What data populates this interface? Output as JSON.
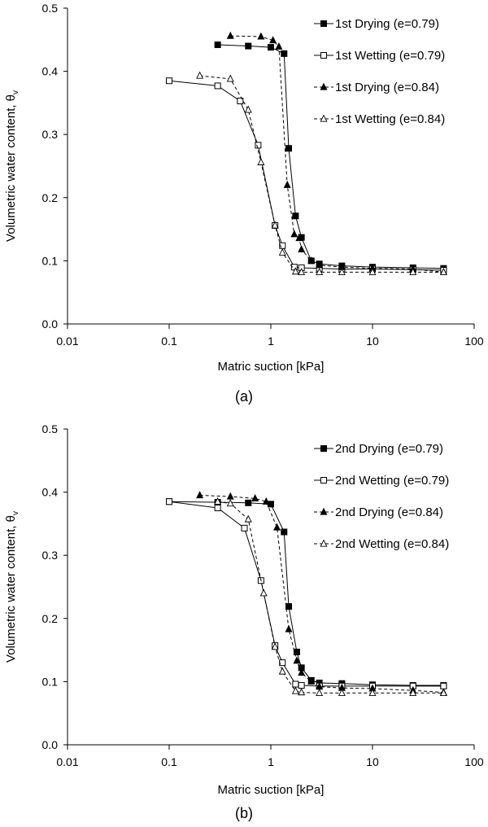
{
  "chart_data": [
    {
      "type": "line",
      "caption": "(a)",
      "xlabel": "Matric suction [kPa]",
      "ylabel_main": "Volumetric water content, θ",
      "ylabel_sub": "v",
      "xscale": "log",
      "xlim": [
        0.01,
        100
      ],
      "ylim": [
        0,
        0.5
      ],
      "xticks": [
        0.01,
        0.1,
        1,
        10,
        100
      ],
      "xtick_labels": [
        "0.01",
        "0.1",
        "1",
        "10",
        "100"
      ],
      "yticks": [
        0,
        0.1,
        0.2,
        0.3,
        0.4,
        0.5
      ],
      "ytick_labels": [
        "0.0",
        "0.1",
        "0.2",
        "0.3",
        "0.4",
        "0.5"
      ],
      "grid": false,
      "legend_position": "top-right",
      "series": [
        {
          "name": "1st Drying (e=0.79)",
          "marker": "square-filled",
          "line": "solid",
          "x": [
            0.3,
            0.6,
            1.0,
            1.35,
            1.5,
            1.75,
            2.0,
            2.5,
            3.0,
            5.0,
            10.0,
            25.0,
            50.0
          ],
          "y": [
            0.442,
            0.44,
            0.438,
            0.428,
            0.278,
            0.171,
            0.137,
            0.1,
            0.095,
            0.092,
            0.09,
            0.089,
            0.088
          ]
        },
        {
          "name": "1st Wetting (e=0.79)",
          "marker": "square-open",
          "line": "solid",
          "x": [
            0.1,
            0.3,
            0.5,
            0.75,
            1.1,
            1.3,
            1.7,
            2.0,
            3.0,
            5.0,
            10.0,
            25.0,
            50.0
          ],
          "y": [
            0.385,
            0.377,
            0.353,
            0.283,
            0.156,
            0.124,
            0.09,
            0.089,
            0.088,
            0.087,
            0.087,
            0.086,
            0.085
          ]
        },
        {
          "name": "1st Drying (e=0.84)",
          "marker": "triangle-filled",
          "line": "dashed",
          "x": [
            0.4,
            0.8,
            1.05,
            1.2,
            1.45,
            1.7,
            1.9,
            2.0,
            2.5,
            3.0,
            5.0,
            10.0,
            25.0,
            50.0
          ],
          "y": [
            0.456,
            0.455,
            0.449,
            0.439,
            0.22,
            0.142,
            0.136,
            0.118,
            0.1,
            0.093,
            0.09,
            0.088,
            0.087,
            0.082
          ]
        },
        {
          "name": "1st Wetting (e=0.84)",
          "marker": "triangle-open",
          "line": "dashed",
          "x": [
            0.2,
            0.4,
            0.6,
            0.8,
            1.1,
            1.3,
            1.75,
            2.0,
            3.0,
            5.0,
            10.0,
            25.0,
            50.0
          ],
          "y": [
            0.393,
            0.388,
            0.339,
            0.256,
            0.156,
            0.113,
            0.083,
            0.082,
            0.082,
            0.082,
            0.082,
            0.082,
            0.082
          ]
        }
      ]
    },
    {
      "type": "line",
      "caption": "(b)",
      "xlabel": "Matric suction [kPa]",
      "ylabel_main": "Volumetric water content, θ",
      "ylabel_sub": "v",
      "xscale": "log",
      "xlim": [
        0.01,
        100
      ],
      "ylim": [
        0,
        0.5
      ],
      "xticks": [
        0.01,
        0.1,
        1,
        10,
        100
      ],
      "xtick_labels": [
        "0.01",
        "0.1",
        "1",
        "10",
        "100"
      ],
      "yticks": [
        0,
        0.1,
        0.2,
        0.3,
        0.4,
        0.5
      ],
      "ytick_labels": [
        "0.0",
        "0.1",
        "0.2",
        "0.3",
        "0.4",
        "0.5"
      ],
      "grid": false,
      "legend_position": "top-right",
      "series": [
        {
          "name": "2nd Drying (e=0.79)",
          "marker": "square-filled",
          "line": "solid",
          "x": [
            0.1,
            0.3,
            0.6,
            1.0,
            1.35,
            1.5,
            1.8,
            2.0,
            2.5,
            3.0,
            5.0,
            10.0,
            25.0,
            50.0
          ],
          "y": [
            0.385,
            0.384,
            0.383,
            0.381,
            0.337,
            0.219,
            0.147,
            0.122,
            0.102,
            0.098,
            0.097,
            0.095,
            0.094,
            0.094
          ]
        },
        {
          "name": "2nd Wetting (e=0.79)",
          "marker": "square-open",
          "line": "solid",
          "x": [
            0.1,
            0.3,
            0.55,
            0.8,
            1.1,
            1.3,
            1.75,
            2.0,
            3.0,
            5.0,
            10.0,
            25.0,
            50.0
          ],
          "y": [
            0.385,
            0.375,
            0.343,
            0.26,
            0.157,
            0.13,
            0.096,
            0.094,
            0.093,
            0.093,
            0.093,
            0.093,
            0.093
          ]
        },
        {
          "name": "2nd Drying (e=0.84)",
          "marker": "triangle-filled",
          "line": "dashed",
          "x": [
            0.2,
            0.4,
            0.7,
            0.9,
            1.15,
            1.5,
            1.8,
            2.0,
            2.5,
            3.0,
            5.0,
            10.0,
            25.0,
            50.0
          ],
          "y": [
            0.395,
            0.393,
            0.39,
            0.385,
            0.344,
            0.183,
            0.133,
            0.114,
            0.1,
            0.092,
            0.09,
            0.089,
            0.086,
            0.083
          ]
        },
        {
          "name": "2nd Wetting (e=0.84)",
          "marker": "triangle-open",
          "line": "dashed",
          "x": [
            0.3,
            0.4,
            0.6,
            0.85,
            1.1,
            1.3,
            1.75,
            2.0,
            3.0,
            5.0,
            10.0,
            25.0,
            50.0
          ],
          "y": [
            0.385,
            0.382,
            0.357,
            0.24,
            0.155,
            0.116,
            0.085,
            0.083,
            0.082,
            0.082,
            0.082,
            0.082,
            0.082
          ]
        }
      ]
    }
  ]
}
